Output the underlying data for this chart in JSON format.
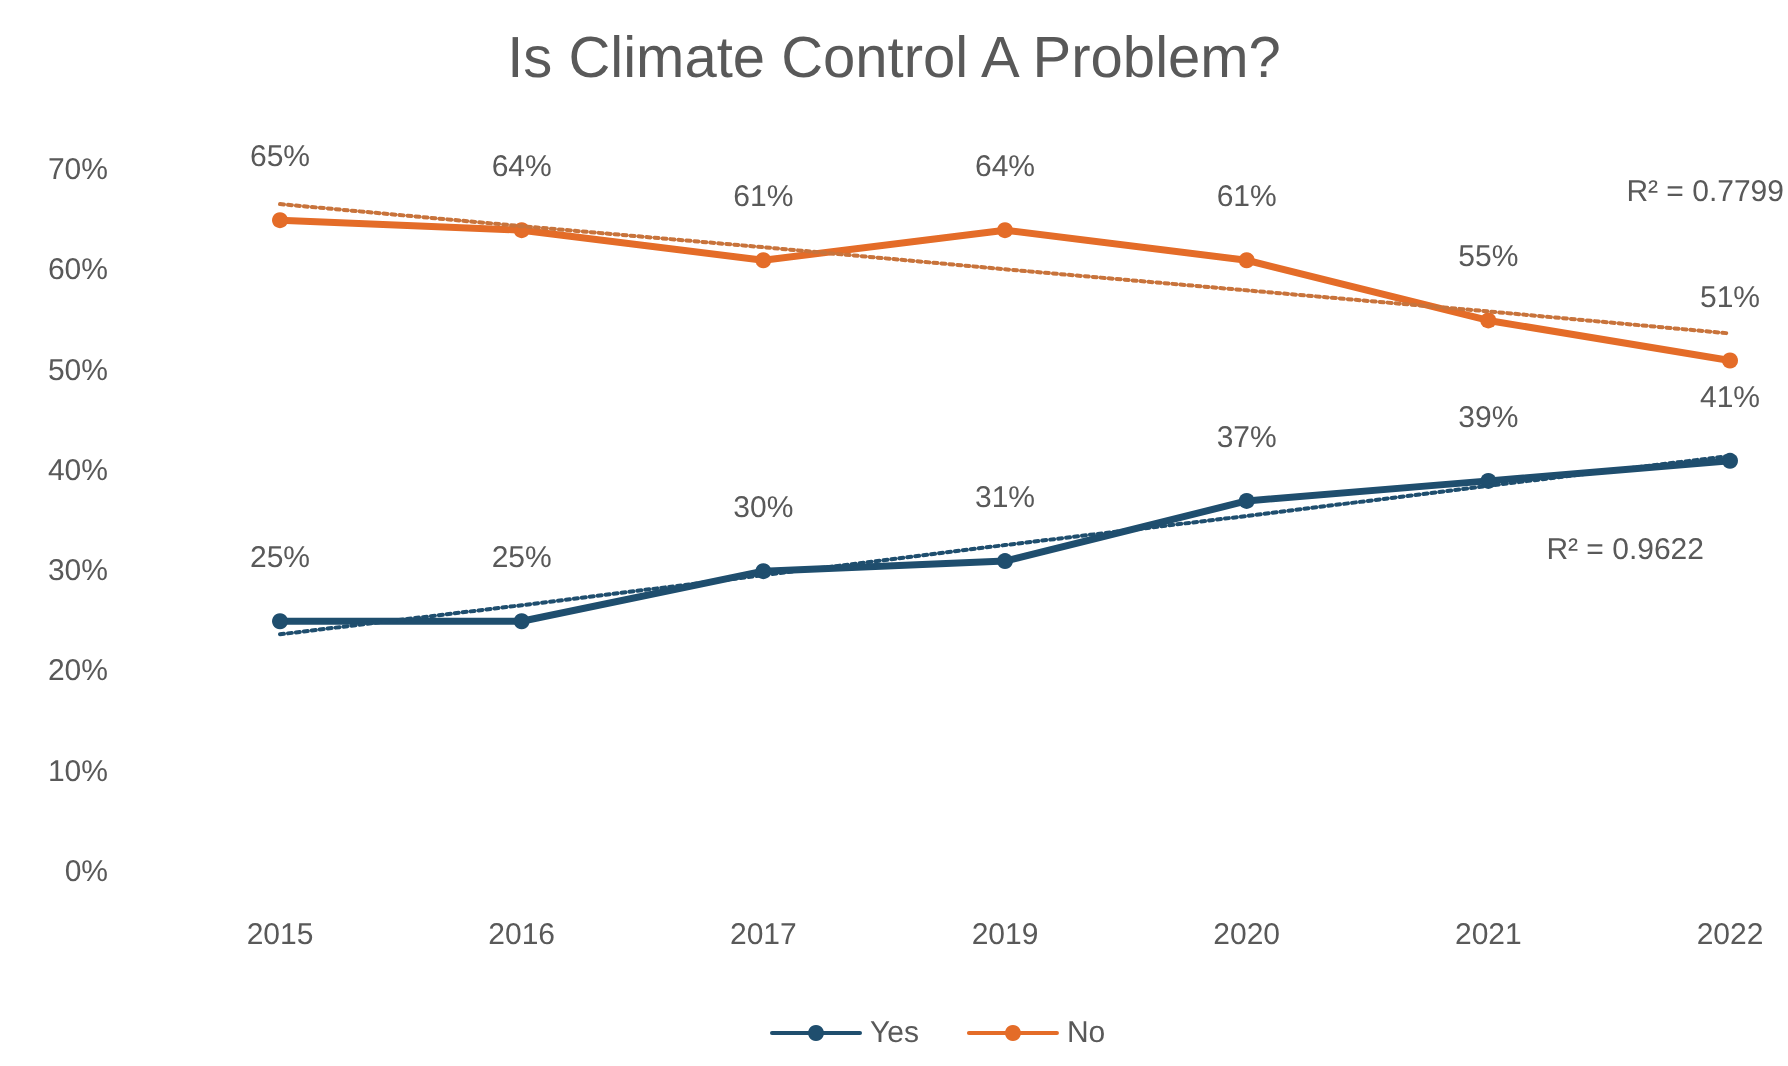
{
  "chart_data": {
    "type": "line",
    "title": "Is Climate Control A Problem?",
    "categories": [
      "2015",
      "2016",
      "2017",
      "2019",
      "2020",
      "2021",
      "2022"
    ],
    "series": [
      {
        "name": "Yes",
        "color": "#1f4e6e",
        "values": [
          25,
          25,
          30,
          31,
          37,
          39,
          41
        ],
        "value_labels": [
          "25%",
          "25%",
          "30%",
          "31%",
          "37%",
          "39%",
          "41%"
        ]
      },
      {
        "name": "No",
        "color": "#e46c28",
        "values": [
          65,
          64,
          61,
          64,
          61,
          55,
          51
        ],
        "value_labels": [
          "65%",
          "64%",
          "61%",
          "64%",
          "61%",
          "55%",
          "51%"
        ]
      },
      {
        "type": "line",
        "color": "#1f4e6e",
        "values": [
          23.7,
          26.6,
          29.6,
          32.6,
          35.5,
          38.5,
          41.5
        ],
        "marker": "none",
        "line_style": "dotted"
      },
      {
        "type": "line",
        "color": "#c8733b",
        "values": [
          66.6,
          64.4,
          62.3,
          60.1,
          58.0,
          55.9,
          53.7
        ],
        "marker": "none",
        "line_style": "dotted"
      }
    ],
    "ylim": [
      0,
      70
    ],
    "yticks": [
      {
        "value": 0,
        "label": "0%"
      },
      {
        "value": 10,
        "label": "10%"
      },
      {
        "value": 20,
        "label": "20%"
      },
      {
        "value": 30,
        "label": "30%"
      },
      {
        "value": 40,
        "label": "40%"
      },
      {
        "value": 50,
        "label": "50%"
      },
      {
        "value": 60,
        "label": "60%"
      },
      {
        "value": 70,
        "label": "70%"
      }
    ],
    "grid": false,
    "legend": "bottom",
    "marker": "circle",
    "line_style": "solid",
    "annotations": [
      "R² = 0.7799",
      "R² = 0.9622"
    ]
  }
}
